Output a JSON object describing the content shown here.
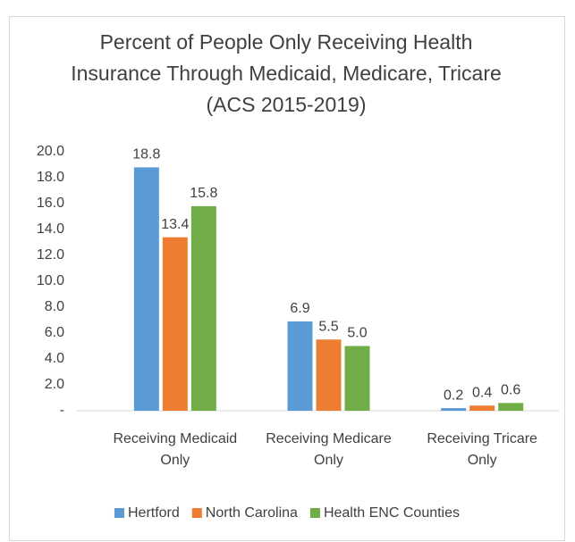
{
  "chart_data": {
    "type": "bar",
    "title": "Percent of People Only Receiving Health Insurance Through Medicaid, Medicare, Tricare (ACS 2015-2019)",
    "categories": [
      "Receiving Medicaid Only",
      "Receiving Medicare Only",
      "Receiving Tricare Only"
    ],
    "series": [
      {
        "name": "Hertford",
        "color": "#5b9bd5",
        "values": [
          18.8,
          6.9,
          0.2
        ],
        "value_labels": [
          "18.8",
          "6.9",
          "0.2"
        ]
      },
      {
        "name": "North Carolina",
        "color": "#ed7d31",
        "values": [
          13.4,
          5.5,
          0.4
        ],
        "value_labels": [
          "13.4",
          "5.5",
          "0.4"
        ]
      },
      {
        "name": "Health ENC Counties",
        "color": "#70ad47",
        "values": [
          15.8,
          5.0,
          0.6
        ],
        "value_labels": [
          "15.8",
          "5.0",
          "0.6"
        ]
      }
    ],
    "ylim": [
      0,
      20
    ],
    "yticks": [
      {
        "value": 0,
        "label": "-"
      },
      {
        "value": 2,
        "label": "2.0"
      },
      {
        "value": 4,
        "label": "4.0"
      },
      {
        "value": 6,
        "label": "6.0"
      },
      {
        "value": 8,
        "label": "8.0"
      },
      {
        "value": 10,
        "label": "10.0"
      },
      {
        "value": 12,
        "label": "12.0"
      },
      {
        "value": 14,
        "label": "14.0"
      },
      {
        "value": 16,
        "label": "16.0"
      },
      {
        "value": 18,
        "label": "18.0"
      },
      {
        "value": 20,
        "label": "20.0"
      }
    ],
    "grid": false,
    "legend": "bottom"
  }
}
